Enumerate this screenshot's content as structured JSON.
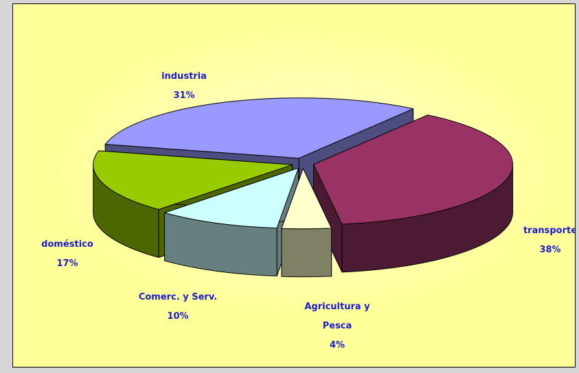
{
  "chart_data": {
    "type": "pie3d",
    "categories": [
      "industria",
      "transporte",
      "Agricultura y Pesca",
      "Comerc. y Serv.",
      "doméstico"
    ],
    "values": [
      31,
      38,
      4,
      10,
      17
    ],
    "value_labels": [
      "31%",
      "38%",
      "4%",
      "10%",
      "17%"
    ],
    "colors": [
      "#9999ff",
      "#993366",
      "#ffffcc",
      "#ccffff",
      "#99cc00"
    ],
    "exploded": true
  }
}
